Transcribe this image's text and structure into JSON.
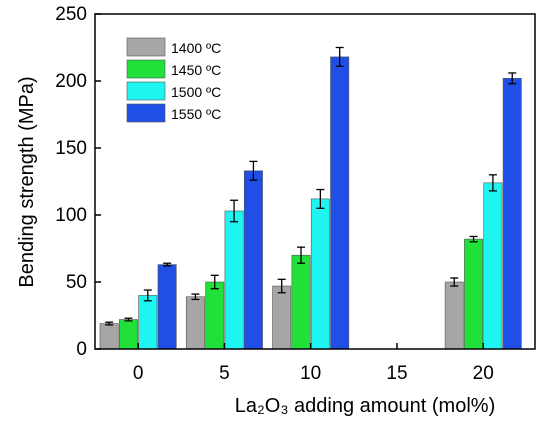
{
  "chart_data": {
    "type": "bar",
    "xlabel": "La₂O₃ adding amount (mol%)",
    "ylabel": "Bending strength (MPa)",
    "categories": [
      "0",
      "5",
      "10",
      "15",
      "20"
    ],
    "xlim": [
      -2.5,
      23
    ],
    "ylim": [
      0,
      250
    ],
    "yticks": [
      0,
      50,
      100,
      150,
      200,
      250
    ],
    "legend_position": "top-left",
    "grid": false,
    "series": [
      {
        "name": "1400 ºC",
        "color": "#a6a6a6",
        "values": [
          19,
          39,
          47,
          null,
          50
        ],
        "errors": [
          1,
          2,
          5,
          null,
          3
        ]
      },
      {
        "name": "1450 ºC",
        "color": "#22e03a",
        "values": [
          22,
          50,
          70,
          null,
          82
        ],
        "errors": [
          1,
          5,
          6,
          null,
          2
        ]
      },
      {
        "name": "1500 ºC",
        "color": "#1ff5f0",
        "values": [
          40,
          103,
          112,
          null,
          124
        ],
        "errors": [
          4,
          8,
          7,
          null,
          6
        ]
      },
      {
        "name": "1550 ºC",
        "color": "#1f4fe6",
        "values": [
          63,
          133,
          218,
          null,
          202
        ],
        "errors": [
          1,
          7,
          7,
          null,
          4
        ]
      }
    ]
  }
}
